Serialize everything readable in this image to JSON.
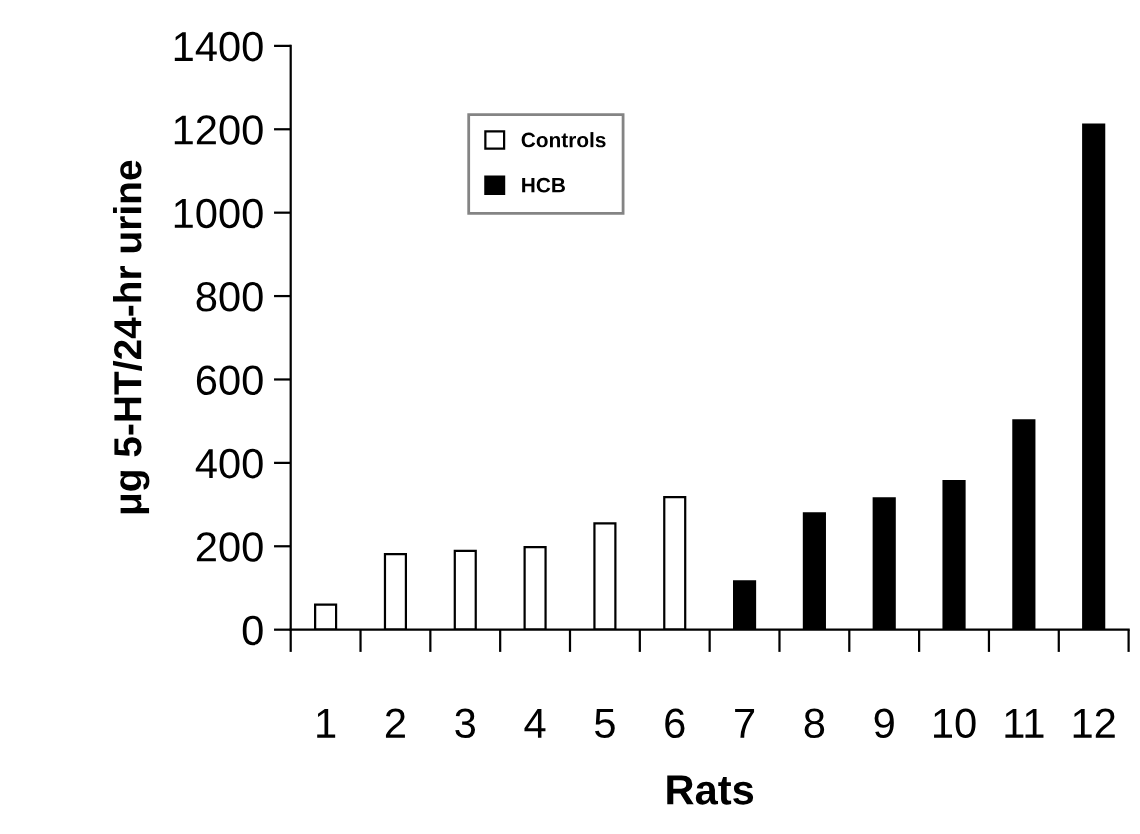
{
  "chart_data": {
    "type": "bar",
    "xlabel": "Rats",
    "ylabel": "μg 5-HT/24-hr urine",
    "categories": [
      "1",
      "2",
      "3",
      "4",
      "5",
      "6",
      "7",
      "8",
      "9",
      "10",
      "11",
      "12"
    ],
    "series": [
      {
        "name": "Controls",
        "color": "#ffffff",
        "values": [
          60,
          181,
          189,
          198,
          255,
          318,
          null,
          null,
          null,
          null,
          null,
          null
        ]
      },
      {
        "name": "HCB",
        "color": "#000000",
        "values": [
          null,
          null,
          null,
          null,
          null,
          null,
          116,
          279,
          315,
          356,
          502,
          1211
        ]
      }
    ],
    "ylim": [
      0,
      1400
    ],
    "yticks": [
      0,
      200,
      400,
      600,
      800,
      1000,
      1200,
      1400
    ],
    "grid": false,
    "legend": "top left"
  }
}
